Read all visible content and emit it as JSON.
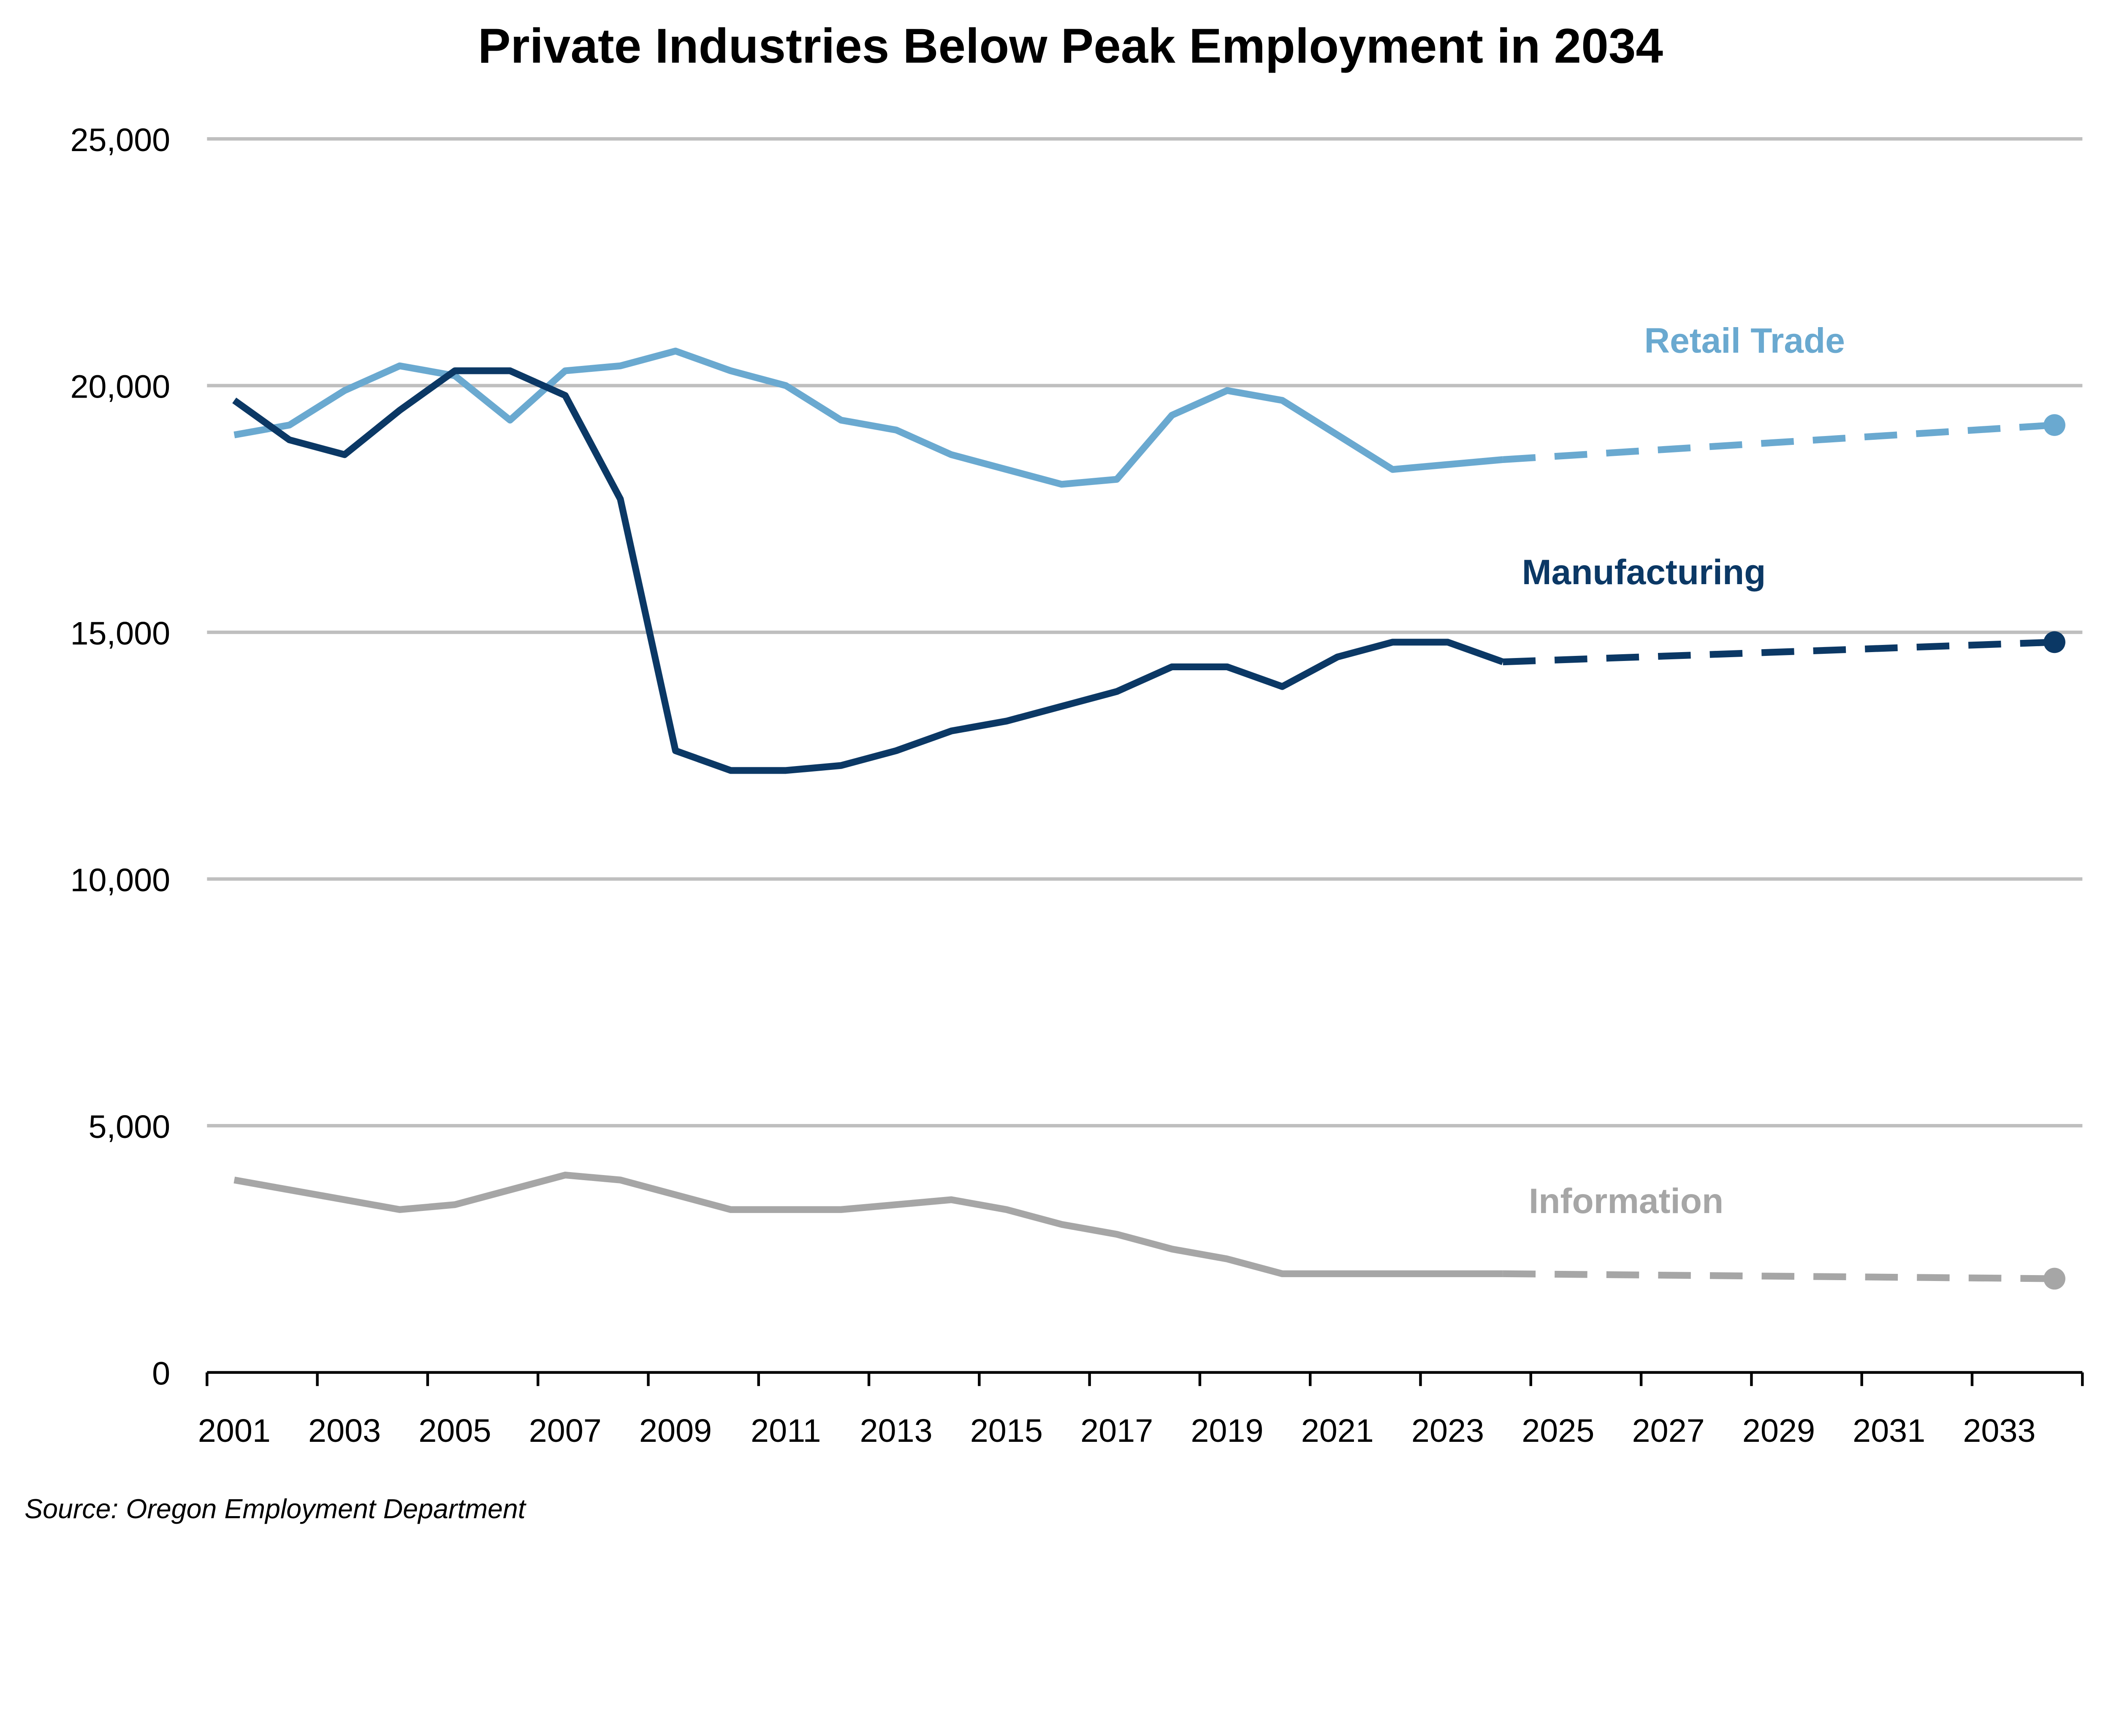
{
  "chart_data": {
    "type": "line",
    "title": "Private Industries Below Peak Employment in 2034",
    "source": "Source: Oregon Employment Department",
    "xlabel": "",
    "ylabel": "",
    "ylim": [
      0,
      25000
    ],
    "yticks": [
      0,
      5000,
      10000,
      15000,
      20000,
      25000
    ],
    "ytick_labels": [
      "0",
      "5,000",
      "10,000",
      "15,000",
      "20,000",
      "25,000"
    ],
    "xlim": [
      2001,
      2034
    ],
    "xtick_labels": [
      "2001",
      "2003",
      "2005",
      "2007",
      "2009",
      "2011",
      "2013",
      "2015",
      "2017",
      "2019",
      "2021",
      "2023",
      "2025",
      "2027",
      "2029",
      "2031",
      "2033"
    ],
    "grid": "horizontal",
    "legend": "direct labels",
    "x": [
      2001,
      2002,
      2003,
      2004,
      2005,
      2006,
      2007,
      2008,
      2009,
      2010,
      2011,
      2012,
      2013,
      2014,
      2015,
      2016,
      2017,
      2018,
      2019,
      2020,
      2021,
      2022,
      2023,
      2024
    ],
    "series": [
      {
        "name": "Retail Trade",
        "color": "#6aa9d0",
        "values": [
          19000,
          19200,
          19900,
          20400,
          20200,
          19300,
          20300,
          20400,
          20700,
          20300,
          20000,
          19300,
          19100,
          18600,
          18300,
          18000,
          18100,
          19400,
          19900,
          19700,
          19000,
          18300,
          18400,
          18500
        ],
        "forecast": {
          "x": [
            2024,
            2034
          ],
          "values": [
            18500,
            19200
          ],
          "style": "dashed",
          "end_marker": "circle"
        }
      },
      {
        "name": "Manufacturing",
        "color": "#0b3865",
        "values": [
          19700,
          18900,
          18600,
          19500,
          20300,
          20300,
          19800,
          17700,
          12600,
          12200,
          12200,
          12300,
          12600,
          13000,
          13200,
          13500,
          13800,
          14300,
          14300,
          13900,
          14500,
          14800,
          14800,
          14400
        ],
        "forecast": {
          "x": [
            2024,
            2034
          ],
          "values": [
            14400,
            14800
          ],
          "style": "dashed",
          "end_marker": "circle"
        }
      },
      {
        "name": "Information",
        "color": "#a6a6a6",
        "values": [
          3900,
          3700,
          3500,
          3300,
          3400,
          3700,
          4000,
          3900,
          3600,
          3300,
          3300,
          3300,
          3400,
          3500,
          3300,
          3000,
          2800,
          2500,
          2300,
          2000,
          2000,
          2000,
          2000,
          2000
        ],
        "forecast": {
          "x": [
            2024,
            2034
          ],
          "values": [
            2000,
            1900
          ],
          "style": "dashed",
          "end_marker": "circle"
        }
      }
    ]
  }
}
